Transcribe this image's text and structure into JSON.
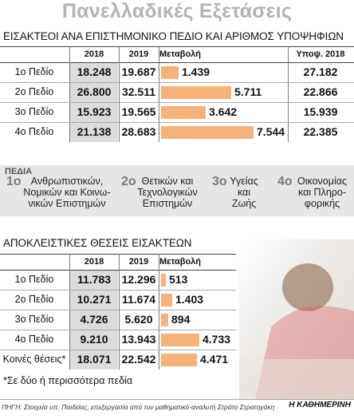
{
  "title": "Πανελλαδικές Εξετάσεις",
  "table1": {
    "subtitle": "ΕΙΣΑΚΤΕΟΙ ΑΝΑ ΕΠΙΣΤΗΜΟΝΙΚΟ ΠΕΔΙΟ ΚΑΙ ΑΡΙΘΜΟΣ ΥΠΟΨΗΦΙΩΝ",
    "headers": {
      "y2018": "2018",
      "y2019": "2019",
      "change": "Μεταβολή",
      "candidates": "Υποψ. 2018"
    }
  },
  "pedia": {
    "title": "ΠΕΔΙΑ",
    "items": [
      {
        "num": "1ο",
        "text": "Ανθρωπιστικών, Νομικών και Κοινω- νικών Επιστημών"
      },
      {
        "num": "2ο",
        "text": "Θετικών και Τεχνολογικών Επιστημών"
      },
      {
        "num": "3ο",
        "text": "Υγείας και Ζωής"
      },
      {
        "num": "4ο",
        "text": "Οικονομίας και Πληρο- φορικής"
      }
    ]
  },
  "table2": {
    "subtitle": "ΑΠΟΚΛΕΙΣΤΙΚΕΣ ΘΕΣΕΙΣ ΕΙΣΑΚΤΕΩΝ",
    "headers": {
      "y2018": "2018",
      "y2019": "2019",
      "change": "Μεταβολή"
    }
  },
  "footnote": "*Σε δύο ή περισσότερα πεδία",
  "source": "ΠΗΓΗ: Στοιχεία υπ. Παιδείας, επεξεργασία από τον μαθηματικό-αναλυτή Στράτο Στρατηγάκη",
  "brand": "Η ΚΑΘΗΜΕΡΙΝΗ",
  "colors": {
    "bar": "#f7b27a",
    "shade2018": "#dcdcdc",
    "pedia_bg": "#e6e6e6",
    "title": "#b3b3b3"
  },
  "chart_data": [
    {
      "type": "bar",
      "title": "ΕΙΣΑΚΤΕΟΙ ΑΝΑ ΕΠΙΣΤΗΜΟΝΙΚΟ ΠΕΔΙΟ ΚΑΙ ΑΡΙΘΜΟΣ ΥΠΟΨΗΦΙΩΝ",
      "categories": [
        "1ο Πεδίο",
        "2ο Πεδίο",
        "3ο Πεδίο",
        "4ο Πεδίο"
      ],
      "y2018": [
        "18.248",
        "26.800",
        "15.923",
        "21.138"
      ],
      "y2019": [
        "19.687",
        "32.511",
        "19.565",
        "28.683"
      ],
      "change_labels": [
        "1.439",
        "5.711",
        "3.642",
        "7.544"
      ],
      "change_values": [
        1439,
        5711,
        3642,
        7544
      ],
      "candidates_2018": [
        "27.182",
        "22.866",
        "15.939",
        "22.385"
      ]
    },
    {
      "type": "bar",
      "title": "ΑΠΟΚΛΕΙΣΤΙΚΕΣ ΘΕΣΕΙΣ ΕΙΣΑΚΤΕΩΝ",
      "categories": [
        "1ο Πεδίο",
        "2ο Πεδίο",
        "3ο Πεδίο",
        "4ο Πεδίο",
        "Κοινές θέσεις*"
      ],
      "y2018": [
        "11.783",
        "10.271",
        "4.726",
        "9.210",
        "18.071"
      ],
      "y2019": [
        "12.296",
        "11.674",
        "5.620",
        "13.943",
        "22.542"
      ],
      "change_labels": [
        "513",
        "1.403",
        "894",
        "4.733",
        "4.471"
      ],
      "change_values": [
        513,
        1403,
        894,
        4733,
        4471
      ]
    }
  ]
}
